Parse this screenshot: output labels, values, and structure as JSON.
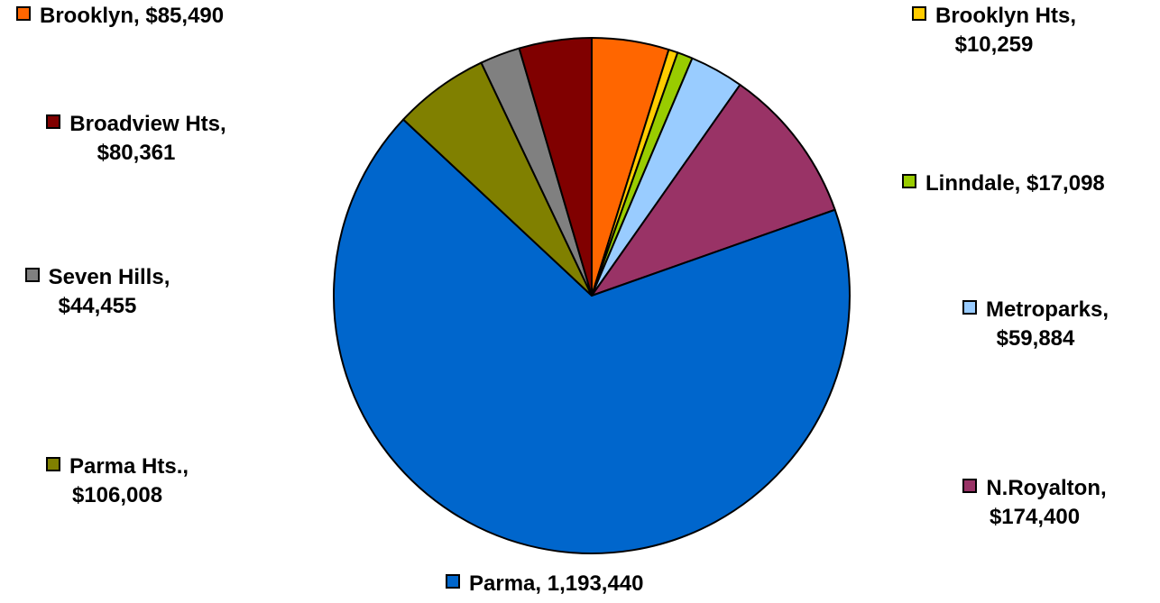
{
  "chart_data": {
    "type": "pie",
    "start_angle_deg": 0,
    "direction": "clockwise",
    "slices": [
      {
        "label": "Brooklyn",
        "value_text": "$85,490",
        "value": 85490,
        "color": "#FF6600"
      },
      {
        "label": "Brooklyn Hts",
        "value_text": "$10,259",
        "value": 10259,
        "color": "#FFCC00"
      },
      {
        "label": "Linndale",
        "value_text": "$17,098",
        "value": 17098,
        "color": "#99CC00"
      },
      {
        "label": "Metroparks",
        "value_text": "$59,884",
        "value": 59884,
        "color": "#99CCFF"
      },
      {
        "label": "N.Royalton",
        "value_text": "$174,400",
        "value": 174400,
        "color": "#993366"
      },
      {
        "label": "Parma",
        "value_text": "1,193,440",
        "value": 1193440,
        "color": "#0066CC"
      },
      {
        "label": "Parma Hts.",
        "value_text": "$106,008",
        "value": 106008,
        "color": "#808000"
      },
      {
        "label": "Seven Hills",
        "value_text": "$44,455",
        "value": 44455,
        "color": "#808080"
      },
      {
        "label": "Broadview Hts",
        "value_text": "$80,361",
        "value": 80361,
        "color": "#800000"
      }
    ]
  }
}
